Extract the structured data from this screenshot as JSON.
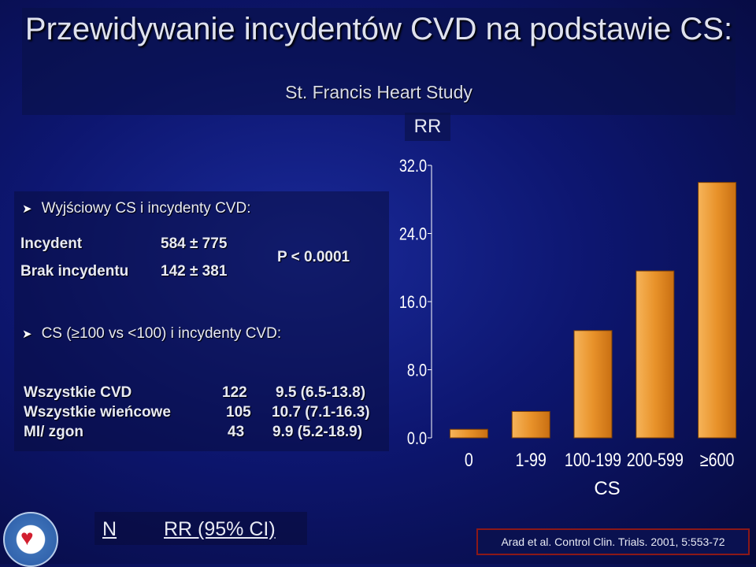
{
  "slide": {
    "title": "Przewidywanie incydentów CVD na podstawie CS:",
    "subtitle": "St. Francis Heart Study",
    "rr_heading": "RR",
    "bullet1": "Wyjściowy CS i incydenty CVD:",
    "row_incydent_label": "Incydent",
    "row_incydent_value": "584 ± 775",
    "row_brak_label": "Brak incydentu",
    "row_brak_value": "142 ± 381",
    "p_value": "P < 0.0001",
    "bullet2": "CS (≥100 vs <100) i incydenty CVD:",
    "table": [
      {
        "label": "Wszystkie CVD",
        "n": "122",
        "rr": "9.5 (6.5-13.8)"
      },
      {
        "label": "Wszystkie wieńcowe",
        "n": "105",
        "rr": "10.7 (7.1-16.3)"
      },
      {
        "label": "MI/ zgon",
        "n": "43",
        "rr": "9.9 (5.2-18.9)"
      }
    ],
    "col_n": "N",
    "col_rr": "RR (95% CI)",
    "citation": "Arad et al.  Control Clin. Trials. 2001, 5:553-72"
  },
  "chart_data": {
    "type": "bar",
    "categories": [
      "0",
      "1-99",
      "100-199",
      "200-599",
      "≥600"
    ],
    "values": [
      1.0,
      3.1,
      12.6,
      19.6,
      30.0
    ],
    "xlabel": "CS",
    "ylabel": "RR",
    "ylim": [
      0,
      32
    ],
    "yticks": [
      "0.0",
      "8.0",
      "16.0",
      "24.0",
      "32.0"
    ],
    "bar_color": "#e8922a",
    "grid": false
  }
}
